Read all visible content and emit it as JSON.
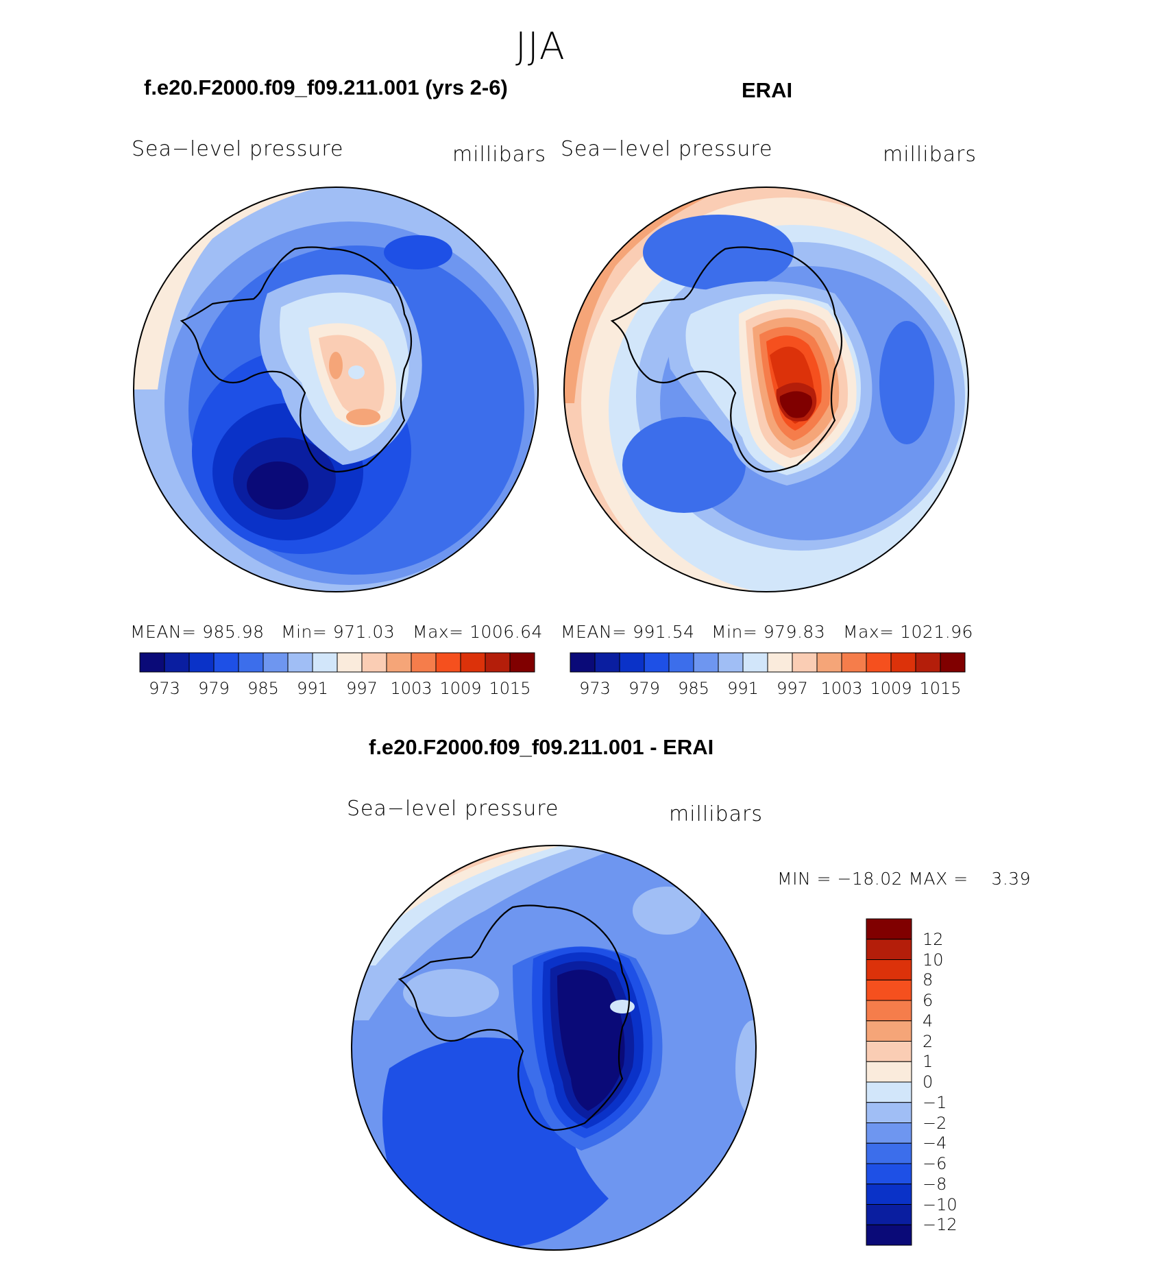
{
  "season": "JJA",
  "panels": [
    {
      "title": "f.e20.F2000.f09_f09.211.001 (yrs 2-6)",
      "left_label": "Sea−level pressure",
      "right_label": "millibars",
      "mean_label": "MEAN= 985.98",
      "min_label": "Min= 971.03",
      "max_label": "Max= 1006.64"
    },
    {
      "title": "ERAI",
      "left_label": "Sea−level pressure",
      "right_label": "millibars",
      "mean_label": "MEAN= 991.54",
      "min_label": "Min= 979.83",
      "max_label": "Max= 1021.96"
    },
    {
      "title": "f.e20.F2000.f09_f09.211.001 - ERAI",
      "left_label": "Sea−level pressure",
      "right_label": "millibars",
      "minmax_label": "MIN = −18.02 MAX =    3.39"
    }
  ],
  "colorbar_abs": {
    "colors": [
      "#0a0a78",
      "#0a1ea0",
      "#0a32c8",
      "#1e50e6",
      "#3c6eeb",
      "#6e96f0",
      "#a0bef5",
      "#d2e6fa",
      "#faebdc",
      "#facdb4",
      "#f5a578",
      "#f57d4b",
      "#f5501e",
      "#dc320a",
      "#b41e0a",
      "#800000"
    ],
    "ticks": [
      "973",
      "979",
      "985",
      "991",
      "997",
      "1003",
      "1009",
      "1015"
    ]
  },
  "colorbar_diff": {
    "colors": [
      "#0a0a78",
      "#0a1ea0",
      "#0a32c8",
      "#1e50e6",
      "#3c6eeb",
      "#6e96f0",
      "#a0bef5",
      "#d2e6fa",
      "#faebdc",
      "#facdb4",
      "#f5a578",
      "#f57d4b",
      "#f5501e",
      "#dc320a",
      "#b41e0a",
      "#800000"
    ],
    "ticks": [
      "12",
      "10",
      "8",
      "6",
      "4",
      "2",
      "1",
      "0",
      "−1",
      "−2",
      "−4",
      "−6",
      "−8",
      "−10",
      "−12"
    ]
  },
  "chart_data": [
    {
      "type": "heatmap",
      "title": "f.e20.F2000.f09_f09.211.001 (yrs 2-6)",
      "variable": "Sea−level pressure",
      "units": "millibars",
      "projection": "south polar stereographic",
      "mean": 985.98,
      "min": 971.03,
      "max": 1006.64,
      "contour_levels": [
        970,
        973,
        976,
        979,
        982,
        985,
        988,
        991,
        994,
        997,
        1000,
        1003,
        1006,
        1009,
        1012,
        1015
      ]
    },
    {
      "type": "heatmap",
      "title": "ERAI",
      "variable": "Sea−level pressure",
      "units": "millibars",
      "projection": "south polar stereographic",
      "mean": 991.54,
      "min": 979.83,
      "max": 1021.96,
      "contour_levels": [
        970,
        973,
        976,
        979,
        982,
        985,
        988,
        991,
        994,
        997,
        1000,
        1003,
        1006,
        1009,
        1012,
        1015
      ]
    },
    {
      "type": "heatmap",
      "title": "f.e20.F2000.f09_f09.211.001 - ERAI",
      "variable": "Sea−level pressure",
      "units": "millibars",
      "projection": "south polar stereographic",
      "min": -18.02,
      "max": 3.39,
      "contour_levels": [
        -12,
        -10,
        -8,
        -6,
        -4,
        -2,
        -1,
        0,
        1,
        2,
        4,
        6,
        8,
        10,
        12
      ]
    }
  ]
}
